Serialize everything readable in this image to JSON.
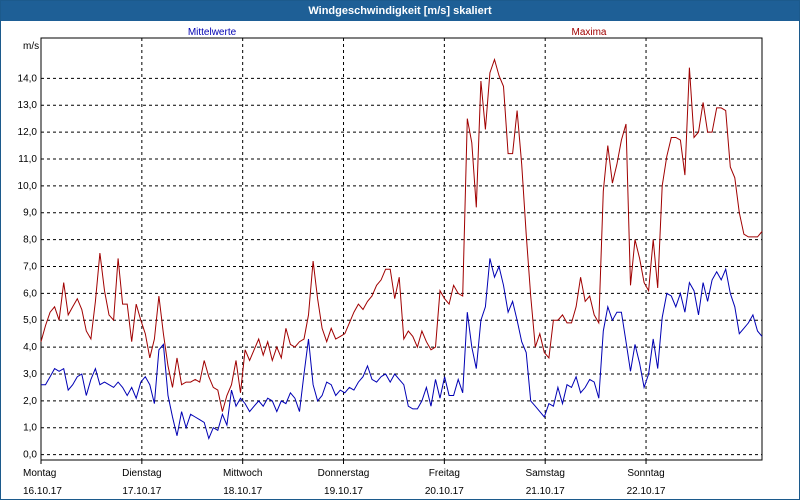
{
  "window": {
    "title": "Windgeschwindigkeit [m/s] skaliert"
  },
  "chart_data": {
    "type": "line",
    "title": "Windgeschwindigkeit [m/s] skaliert",
    "ylabel": "m/s",
    "xlabel": "",
    "ylim": [
      -0.2,
      15.5
    ],
    "y_ticks": [
      "0,0",
      "1,0",
      "2,0",
      "3,0",
      "4,0",
      "5,0",
      "6,0",
      "7,0",
      "8,0",
      "9,0",
      "10,0",
      "11,0",
      "12,0",
      "13,0",
      "14,0"
    ],
    "x_range_days": [
      0,
      7.15
    ],
    "x_ticks": [
      {
        "day": "Montag",
        "date": "16.10.17"
      },
      {
        "day": "Dienstag",
        "date": "17.10.17"
      },
      {
        "day": "Mittwoch",
        "date": "18.10.17"
      },
      {
        "day": "Donnerstag",
        "date": "19.10.17"
      },
      {
        "day": "Freitag",
        "date": "20.10.17"
      },
      {
        "day": "Samstag",
        "date": "21.10.17"
      },
      {
        "day": "Sonntag",
        "date": "22.10.17"
      }
    ],
    "grid": true,
    "legend": "top",
    "series": [
      {
        "name": "Mittelwerte",
        "color": "#0000b4",
        "values": [
          2.6,
          2.6,
          2.9,
          3.2,
          3.1,
          3.2,
          2.4,
          2.6,
          2.9,
          3.0,
          2.2,
          2.8,
          3.2,
          2.6,
          2.7,
          2.6,
          2.5,
          2.7,
          2.5,
          2.2,
          2.5,
          2.1,
          2.7,
          2.9,
          2.6,
          1.9,
          3.9,
          4.1,
          2.2,
          1.4,
          0.7,
          1.6,
          1.0,
          1.5,
          1.4,
          1.3,
          1.2,
          0.6,
          1.0,
          0.9,
          1.5,
          1.1,
          2.4,
          1.8,
          2.1,
          1.9,
          1.6,
          1.8,
          2.0,
          1.8,
          2.1,
          2.0,
          1.6,
          2.0,
          1.9,
          2.3,
          2.1,
          1.6,
          3.0,
          4.3,
          2.6,
          2.0,
          2.2,
          2.7,
          2.6,
          2.2,
          2.4,
          2.3,
          2.5,
          2.4,
          2.7,
          2.9,
          3.3,
          2.8,
          2.7,
          2.9,
          3.0,
          2.7,
          3.0,
          2.8,
          2.6,
          1.8,
          1.7,
          1.7,
          2.0,
          2.5,
          1.8,
          2.8,
          2.1,
          2.9,
          2.2,
          2.2,
          2.8,
          2.3,
          5.3,
          4.0,
          3.2,
          5.0,
          5.5,
          7.3,
          6.6,
          7.0,
          6.3,
          5.3,
          5.7,
          5.0,
          4.2,
          3.8,
          2.0,
          1.8,
          1.6,
          1.4,
          1.9,
          1.8,
          2.5,
          1.9,
          2.6,
          2.5,
          2.9,
          2.3,
          2.5,
          2.8,
          2.7,
          2.1,
          4.6,
          5.5,
          5.0,
          5.3,
          5.3,
          4.2,
          3.1,
          4.1,
          3.4,
          2.5,
          3.0,
          4.3,
          3.2,
          5.1,
          6.0,
          5.9,
          5.5,
          6.0,
          5.3,
          6.4,
          6.1,
          5.2,
          6.4,
          5.7,
          6.5,
          6.8,
          6.5,
          6.9,
          6.0,
          5.5,
          4.5,
          4.7,
          4.9,
          5.2,
          4.6,
          4.4
        ]
      },
      {
        "name": "Maxima",
        "color": "#a00000",
        "values": [
          4.2,
          4.8,
          5.3,
          5.5,
          5.0,
          6.4,
          5.2,
          5.5,
          5.8,
          5.4,
          4.6,
          4.3,
          5.7,
          7.5,
          6.1,
          5.2,
          5.0,
          7.3,
          5.6,
          5.6,
          4.2,
          5.6,
          5.0,
          4.5,
          3.6,
          4.3,
          5.9,
          4.5,
          3.3,
          2.5,
          3.6,
          2.6,
          2.7,
          2.7,
          2.8,
          2.7,
          3.5,
          2.9,
          2.5,
          2.4,
          1.6,
          2.2,
          2.6,
          3.5,
          2.3,
          3.9,
          3.5,
          3.9,
          4.3,
          3.7,
          4.2,
          3.5,
          4.0,
          3.6,
          4.7,
          4.1,
          4.0,
          4.2,
          4.3,
          5.2,
          7.2,
          5.8,
          4.7,
          4.2,
          4.7,
          4.3,
          4.4,
          4.5,
          4.9,
          5.3,
          5.6,
          5.4,
          5.7,
          5.9,
          6.3,
          6.5,
          6.9,
          6.9,
          5.8,
          6.6,
          4.3,
          4.6,
          4.4,
          4.0,
          4.6,
          4.2,
          3.9,
          4.0,
          6.1,
          5.8,
          5.6,
          6.3,
          6.0,
          5.9,
          12.5,
          11.6,
          9.2,
          13.9,
          12.1,
          14.2,
          14.7,
          14.1,
          13.7,
          11.2,
          11.2,
          12.8,
          10.8,
          8.2,
          5.9,
          4.0,
          4.5,
          3.8,
          3.6,
          5.0,
          5.0,
          5.2,
          4.9,
          4.9,
          5.5,
          6.6,
          5.7,
          5.9,
          5.2,
          4.9,
          9.8,
          11.5,
          10.1,
          10.8,
          11.7,
          12.3,
          6.3,
          8.0,
          7.3,
          6.4,
          6.1,
          8.0,
          6.2,
          10.0,
          11.1,
          11.8,
          11.8,
          11.7,
          10.4,
          14.4,
          11.8,
          12.0,
          13.1,
          12.0,
          12.0,
          12.9,
          12.9,
          12.8,
          10.7,
          10.3,
          9.0,
          8.2,
          8.1,
          8.1,
          8.1,
          8.3
        ]
      }
    ]
  }
}
